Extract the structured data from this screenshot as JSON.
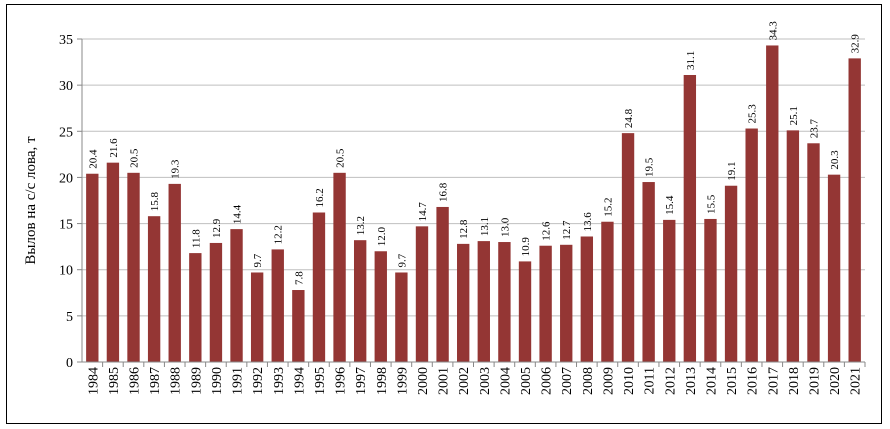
{
  "chart_data": {
    "type": "bar",
    "title": "",
    "xlabel": "",
    "ylabel": "Вылов на с/с лова, т",
    "ylim": [
      0,
      35
    ],
    "yticks": [
      0,
      5,
      10,
      15,
      20,
      25,
      30,
      35
    ],
    "grid": true,
    "legend": "none",
    "bar_color": "#943634",
    "categories": [
      "1984",
      "1985",
      "1986",
      "1987",
      "1988",
      "1989",
      "1990",
      "1991",
      "1992",
      "1993",
      "1994",
      "1995",
      "1996",
      "1997",
      "1998",
      "1999",
      "2000",
      "2001",
      "2002",
      "2003",
      "2004",
      "2005",
      "2006",
      "2007",
      "2008",
      "2009",
      "2010",
      "2011",
      "2012",
      "2013",
      "2014",
      "2015",
      "2016",
      "2017",
      "2018",
      "2019",
      "2020",
      "2021"
    ],
    "values": [
      20.4,
      21.6,
      20.5,
      15.8,
      19.3,
      11.8,
      12.9,
      14.4,
      9.7,
      12.2,
      7.8,
      16.2,
      20.5,
      13.2,
      12.0,
      9.7,
      14.7,
      16.8,
      12.8,
      13.1,
      13.0,
      10.9,
      12.6,
      12.7,
      13.6,
      15.2,
      24.8,
      19.5,
      15.4,
      31.1,
      15.5,
      19.1,
      25.3,
      34.3,
      25.1,
      23.7,
      20.3,
      32.9
    ],
    "value_labels": [
      "20.4",
      "21.6",
      "20.5",
      "15.8",
      "19.3",
      "11.8",
      "12.9",
      "14.4",
      "9.7",
      "12.2",
      "7.8",
      "16.2",
      "20.5",
      "13.2",
      "12.0",
      "9.7",
      "14.7",
      "16.8",
      "12.8",
      "13.1",
      "13.0",
      "10.9",
      "12.6",
      "12.7",
      "13.6",
      "15.2",
      "24.8",
      "19.5",
      "15.4",
      "31.1",
      "15.5",
      "19.1",
      "25.3",
      "34.3",
      "25.1",
      "23.7",
      "20.3",
      "32.9"
    ]
  }
}
